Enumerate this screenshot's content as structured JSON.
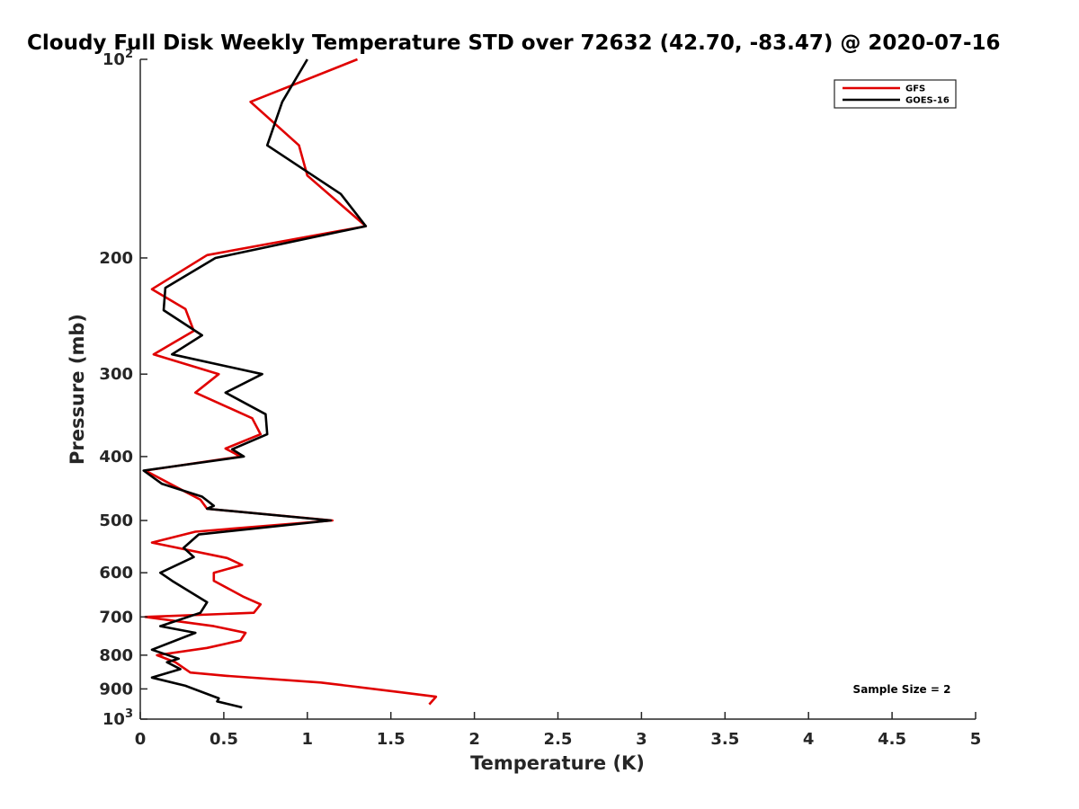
{
  "chart_data": {
    "type": "line",
    "title": "Cloudy Full Disk Weekly Temperature STD over 72632 (42.70, -83.47) @ 2020-07-16",
    "xlabel": "Temperature (K)",
    "ylabel": "Pressure (mb)",
    "xlim": [
      0,
      5
    ],
    "ylim": [
      100,
      1000
    ],
    "y_scale": "log",
    "y_reversed": true,
    "x_ticks": [
      "0",
      "0.5",
      "1",
      "1.5",
      "2",
      "2.5",
      "3",
      "3.5",
      "4",
      "4.5",
      "5"
    ],
    "y_ticks": [
      {
        "value": 100,
        "label": "10",
        "sup": "2"
      },
      {
        "value": 200,
        "label": "200",
        "sup": ""
      },
      {
        "value": 300,
        "label": "300",
        "sup": ""
      },
      {
        "value": 400,
        "label": "400",
        "sup": ""
      },
      {
        "value": 500,
        "label": "500",
        "sup": ""
      },
      {
        "value": 600,
        "label": "600",
        "sup": ""
      },
      {
        "value": 700,
        "label": "700",
        "sup": ""
      },
      {
        "value": 800,
        "label": "800",
        "sup": ""
      },
      {
        "value": 900,
        "label": "900",
        "sup": ""
      },
      {
        "value": 1000,
        "label": "10",
        "sup": "3"
      }
    ],
    "grid": false,
    "legend_position": "top-right",
    "annotation": "Sample Size = 2",
    "series": [
      {
        "name": "GFS",
        "color": "#e00000",
        "points": [
          [
            1.3,
            100
          ],
          [
            0.66,
            116
          ],
          [
            0.95,
            135
          ],
          [
            1.0,
            150
          ],
          [
            1.35,
            179
          ],
          [
            0.4,
            198
          ],
          [
            0.07,
            223
          ],
          [
            0.27,
            239
          ],
          [
            0.32,
            258
          ],
          [
            0.08,
            280
          ],
          [
            0.47,
            300
          ],
          [
            0.33,
            320
          ],
          [
            0.67,
            350
          ],
          [
            0.72,
            370
          ],
          [
            0.51,
            389
          ],
          [
            0.6,
            400
          ],
          [
            0.03,
            420
          ],
          [
            0.18,
            440
          ],
          [
            0.36,
            465
          ],
          [
            0.4,
            480
          ],
          [
            1.15,
            500
          ],
          [
            0.33,
            520
          ],
          [
            0.07,
            540
          ],
          [
            0.52,
            570
          ],
          [
            0.61,
            584
          ],
          [
            0.44,
            600
          ],
          [
            0.44,
            617
          ],
          [
            0.62,
            653
          ],
          [
            0.72,
            670
          ],
          [
            0.68,
            690
          ],
          [
            0.03,
            700
          ],
          [
            0.44,
            723
          ],
          [
            0.63,
            740
          ],
          [
            0.6,
            760
          ],
          [
            0.4,
            780
          ],
          [
            0.1,
            800
          ],
          [
            0.21,
            820
          ],
          [
            0.3,
            850
          ],
          [
            0.52,
            860
          ],
          [
            1.08,
            880
          ],
          [
            1.55,
            910
          ],
          [
            1.77,
            925
          ],
          [
            1.73,
            950
          ]
        ]
      },
      {
        "name": "GOES-16",
        "color": "#000000",
        "points": [
          [
            1.0,
            100
          ],
          [
            0.85,
            116
          ],
          [
            0.76,
            135
          ],
          [
            1.2,
            160
          ],
          [
            1.35,
            179
          ],
          [
            0.45,
            200
          ],
          [
            0.15,
            222
          ],
          [
            0.14,
            240
          ],
          [
            0.37,
            262
          ],
          [
            0.19,
            280
          ],
          [
            0.73,
            300
          ],
          [
            0.51,
            320
          ],
          [
            0.75,
            345
          ],
          [
            0.76,
            370
          ],
          [
            0.55,
            390
          ],
          [
            0.62,
            400
          ],
          [
            0.02,
            420
          ],
          [
            0.13,
            440
          ],
          [
            0.37,
            460
          ],
          [
            0.44,
            475
          ],
          [
            0.4,
            480
          ],
          [
            1.14,
            500
          ],
          [
            0.35,
            525
          ],
          [
            0.26,
            550
          ],
          [
            0.32,
            568
          ],
          [
            0.12,
            600
          ],
          [
            0.19,
            617
          ],
          [
            0.4,
            665
          ],
          [
            0.36,
            690
          ],
          [
            0.12,
            723
          ],
          [
            0.33,
            740
          ],
          [
            0.07,
            785
          ],
          [
            0.23,
            810
          ],
          [
            0.16,
            820
          ],
          [
            0.24,
            840
          ],
          [
            0.07,
            865
          ],
          [
            0.27,
            890
          ],
          [
            0.47,
            930
          ],
          [
            0.46,
            940
          ],
          [
            0.61,
            960
          ]
        ]
      }
    ]
  }
}
